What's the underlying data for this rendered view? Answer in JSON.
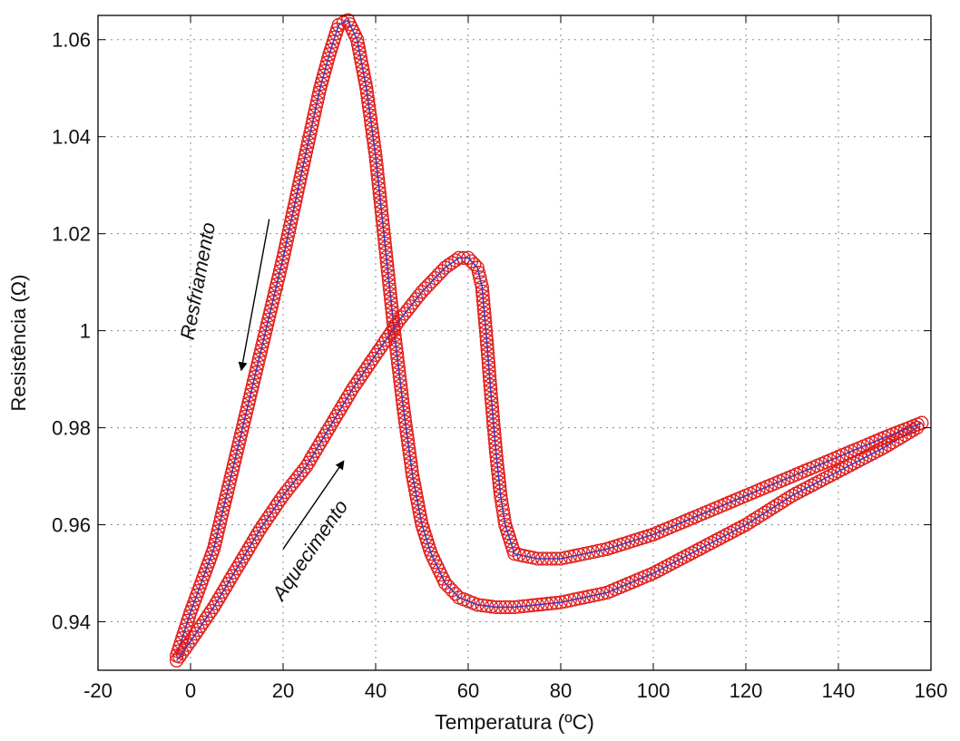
{
  "chart_data": {
    "type": "line",
    "title": "",
    "xlabel": "Temperatura (ºC)",
    "ylabel": "Resistência (Ω)",
    "xlim": [
      -20,
      160
    ],
    "ylim": [
      0.93,
      1.065
    ],
    "x_ticks": [
      -20,
      0,
      20,
      40,
      60,
      80,
      100,
      120,
      140,
      160
    ],
    "x_tick_labels": [
      "-20",
      "0",
      "20",
      "40",
      "60",
      "80",
      "100",
      "120",
      "140",
      "160"
    ],
    "y_ticks": [
      0.94,
      0.96,
      0.98,
      1.0,
      1.02,
      1.04,
      1.06
    ],
    "y_tick_labels": [
      "0.94",
      "0.96",
      "0.98",
      "1",
      "1.02",
      "1.04",
      "1.06"
    ],
    "grid": true,
    "colors": {
      "line": "#2b3fd8",
      "marker": "#e01a1a"
    },
    "annotations": [
      {
        "text": "Resfriamento",
        "at": [
          3,
          1.01
        ],
        "arrow_from": [
          17,
          1.023
        ],
        "arrow_to": [
          11,
          0.992
        ]
      },
      {
        "text": "Aquecimento",
        "at": [
          27,
          0.954
        ],
        "arrow_from": [
          20,
          0.955
        ],
        "arrow_to": [
          33,
          0.973
        ]
      }
    ],
    "series": [
      {
        "x": [
          -3,
          0,
          5,
          10,
          15,
          20,
          25,
          28,
          30,
          32,
          34,
          36,
          38,
          40,
          42,
          44,
          46,
          48,
          50,
          52,
          55,
          58,
          62,
          66,
          70,
          75,
          80,
          90,
          100,
          110,
          120,
          130,
          140,
          150,
          157
        ],
        "y": [
          0.933,
          0.942,
          0.955,
          0.975,
          0.995,
          1.015,
          1.037,
          1.05,
          1.057,
          1.063,
          1.064,
          1.06,
          1.05,
          1.036,
          1.018,
          1.0,
          0.984,
          0.97,
          0.96,
          0.954,
          0.948,
          0.945,
          0.9435,
          0.943,
          0.943,
          0.9435,
          0.944,
          0.946,
          0.95,
          0.955,
          0.96,
          0.966,
          0.971,
          0.976,
          0.98
        ]
      },
      {
        "x": [
          -3,
          0,
          5,
          10,
          15,
          20,
          25,
          30,
          35,
          40,
          45,
          50,
          55,
          58,
          60,
          62,
          63,
          64,
          65,
          66,
          67,
          68,
          70,
          75,
          80,
          90,
          100,
          110,
          120,
          130,
          140,
          150,
          158
        ],
        "y": [
          0.932,
          0.936,
          0.943,
          0.951,
          0.959,
          0.966,
          0.972,
          0.98,
          0.988,
          0.995,
          1.002,
          1.008,
          1.013,
          1.015,
          1.015,
          1.013,
          1.009,
          0.998,
          0.986,
          0.975,
          0.966,
          0.96,
          0.954,
          0.953,
          0.953,
          0.955,
          0.958,
          0.962,
          0.966,
          0.97,
          0.974,
          0.978,
          0.981
        ]
      }
    ]
  }
}
